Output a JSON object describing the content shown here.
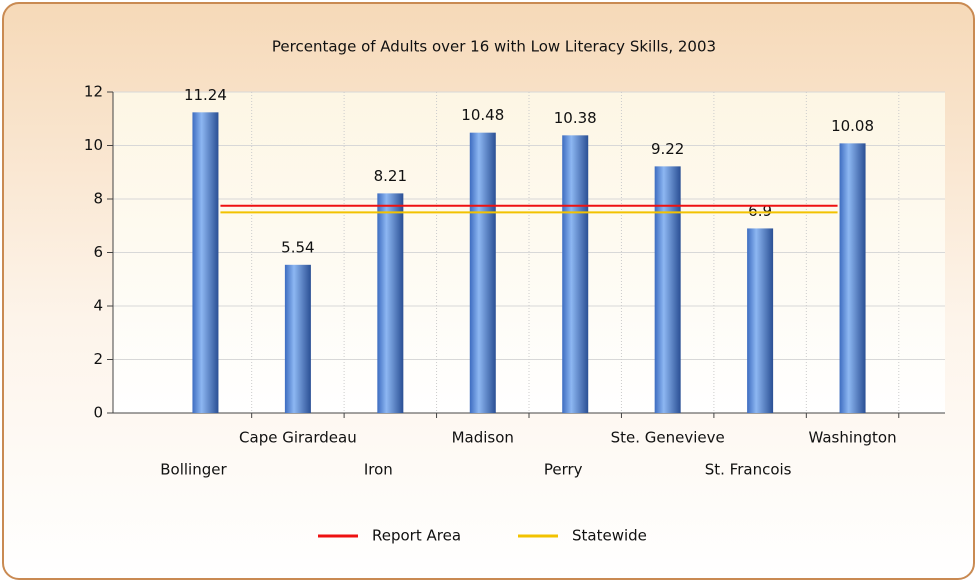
{
  "chart_data": {
    "type": "bar",
    "title": "Percentage of Adults over 16 with Low Literacy Skills, 2003",
    "categories": [
      "Bollinger",
      "Cape Girardeau",
      "Iron",
      "Madison",
      "Perry",
      "Ste. Genevieve",
      "St. Francois",
      "Washington"
    ],
    "values": [
      11.24,
      5.54,
      8.21,
      10.48,
      10.38,
      9.22,
      6.9,
      10.08
    ],
    "color": "#5b8fd9",
    "reference_lines": [
      {
        "name": "Report Area",
        "color": "#ee1111",
        "value": 7.75
      },
      {
        "name": "Statewide",
        "color": "#f2c200",
        "value": 7.5
      }
    ],
    "ylim": [
      0,
      12
    ],
    "yticks": [
      0,
      2,
      4,
      6,
      8,
      10,
      12
    ],
    "grid": true,
    "legend": "bottom"
  }
}
